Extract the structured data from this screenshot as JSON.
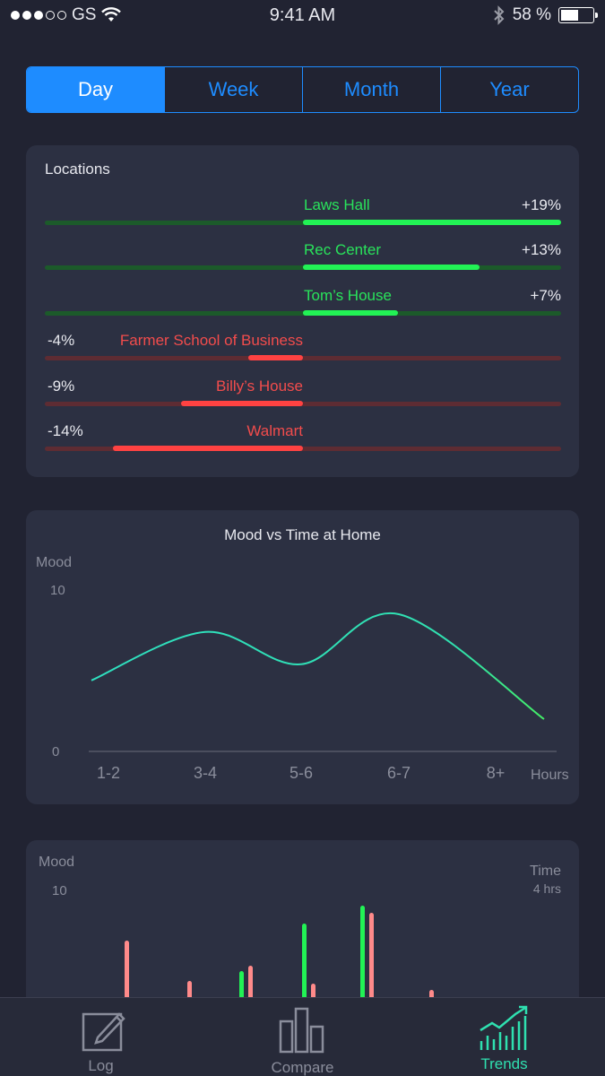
{
  "status_bar": {
    "carrier": "GS",
    "time": "9:41 AM",
    "battery": "58 %",
    "battery_level": 0.58
  },
  "segments": [
    {
      "label": "Day",
      "active": true
    },
    {
      "label": "Week",
      "active": false
    },
    {
      "label": "Month",
      "active": false
    },
    {
      "label": "Year",
      "active": false
    }
  ],
  "locations": {
    "title": "Locations",
    "items": [
      {
        "name": "Laws Hall",
        "pct": "+19%",
        "value": 19
      },
      {
        "name": "Rec Center",
        "pct": "+13%",
        "value": 13
      },
      {
        "name": "Tom’s House",
        "pct": "+7%",
        "value": 7
      },
      {
        "name": "Farmer School of Business",
        "pct": "-4%",
        "value": -4
      },
      {
        "name": "Billy’s House",
        "pct": "-9%",
        "value": -9
      },
      {
        "name": "Walmart",
        "pct": "-14%",
        "value": -14
      }
    ]
  },
  "mood_chart": {
    "title": "Mood vs Time at Home",
    "ylabel": "Mood",
    "y_max_label": "10",
    "y_min_label": "0",
    "xlabel": "Hours",
    "categories": [
      "1-2",
      "3-4",
      "5-6",
      "6-7",
      "8+"
    ]
  },
  "bar_chart": {
    "ylabel": "Mood",
    "y_max_label": "10",
    "y2label": "Time",
    "y2_max_label": "4 hrs"
  },
  "tabs": [
    {
      "label": "Log",
      "icon": "pencil-square-icon",
      "active": false
    },
    {
      "label": "Compare",
      "icon": "bar-graph-icon",
      "active": false
    },
    {
      "label": "Trends",
      "icon": "trend-chart-icon",
      "active": true
    }
  ],
  "colors": {
    "accent": "#1e8cff",
    "positive": "#22f255",
    "negative": "#ff4242",
    "line": "#2fe0b0",
    "background": "#212332",
    "card": "#2c3042"
  },
  "chart_data": [
    {
      "type": "line",
      "title": "Mood vs Time at Home",
      "xlabel": "Hours",
      "ylabel": "Mood",
      "ylim": [
        0,
        10
      ],
      "x": [
        "1-2",
        "3-4",
        "5-6",
        "6-7",
        "8+"
      ],
      "series": [
        {
          "values": [
            4.4,
            7.4,
            5.4,
            8.5,
            2.0
          ]
        }
      ]
    },
    {
      "type": "bar",
      "ylabel": "Mood",
      "ylim": [
        0,
        10
      ],
      "y2label": "Time",
      "y2lim": [
        0,
        4
      ],
      "bars": [
        {
          "color": "pink",
          "value": 4.6
        },
        {
          "color": "pink",
          "value": 1.3
        },
        {
          "color": "green",
          "value": 2.1
        },
        {
          "color": "pink",
          "value": 2.6
        },
        {
          "color": "green",
          "value": 6.0
        },
        {
          "color": "pink",
          "value": 1.1
        },
        {
          "color": "green",
          "value": 7.5
        },
        {
          "color": "pink",
          "value": 6.9
        },
        {
          "color": "pink",
          "value": 0.6
        }
      ]
    }
  ]
}
